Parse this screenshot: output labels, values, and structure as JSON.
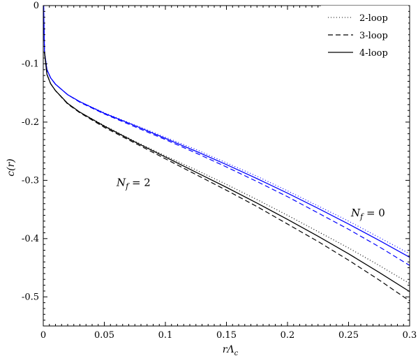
{
  "chart_data": {
    "type": "line",
    "title": "",
    "xlabel": "rΛ",
    "xlabel_sub": "c",
    "ylabel": "c(r)",
    "xlim": [
      0,
      0.3
    ],
    "ylim": [
      -0.55,
      0
    ],
    "xticks": [
      0,
      0.05,
      0.1,
      0.15,
      0.2,
      0.25,
      0.3
    ],
    "xtick_labels": [
      "0",
      "0.05",
      "0.1",
      "0.15",
      "0.2",
      "0.25",
      "0.3"
    ],
    "yticks": [
      0,
      -0.1,
      -0.2,
      -0.3,
      -0.4,
      -0.5
    ],
    "ytick_labels": [
      "0",
      "-0.1",
      "-0.2",
      "-0.3",
      "-0.4",
      "-0.5"
    ],
    "grid": false,
    "legend_position": "top-right",
    "legend": [
      {
        "label": "2-loop",
        "style": "dotted"
      },
      {
        "label": "3-loop",
        "style": "dashed"
      },
      {
        "label": "4-loop",
        "style": "solid"
      }
    ],
    "annotations": [
      {
        "text_main": "N",
        "text_sub": "f",
        "text_rest": " = 2",
        "x": 0.06,
        "y": -0.31
      },
      {
        "text_main": "N",
        "text_sub": "f",
        "text_rest": " = 0",
        "x": 0.252,
        "y": -0.362
      }
    ],
    "colors": {
      "nf0": "#0000ff",
      "nf2": "#000000"
    },
    "series": [
      {
        "group": "Nf=0",
        "loop": "2-loop",
        "style": "dotted",
        "color": "#0000ff",
        "x": [
          0.0003,
          0.001,
          0.003,
          0.006,
          0.01,
          0.02,
          0.03,
          0.05,
          0.075,
          0.1,
          0.125,
          0.15,
          0.175,
          0.2,
          0.225,
          0.25,
          0.275,
          0.3
        ],
        "y": [
          -0.0,
          -0.08,
          -0.11,
          -0.124,
          -0.135,
          -0.153,
          -0.165,
          -0.184,
          -0.205,
          -0.226,
          -0.247,
          -0.27,
          -0.293,
          -0.318,
          -0.344,
          -0.37,
          -0.398,
          -0.426
        ]
      },
      {
        "group": "Nf=0",
        "loop": "3-loop",
        "style": "dashed",
        "color": "#0000ff",
        "x": [
          0.0003,
          0.001,
          0.003,
          0.006,
          0.01,
          0.02,
          0.03,
          0.05,
          0.075,
          0.1,
          0.125,
          0.15,
          0.175,
          0.2,
          0.225,
          0.25,
          0.275,
          0.3
        ],
        "y": [
          -0.0,
          -0.08,
          -0.11,
          -0.124,
          -0.135,
          -0.153,
          -0.166,
          -0.186,
          -0.208,
          -0.23,
          -0.253,
          -0.277,
          -0.302,
          -0.328,
          -0.356,
          -0.384,
          -0.414,
          -0.446
        ]
      },
      {
        "group": "Nf=0",
        "loop": "4-loop",
        "style": "solid",
        "color": "#0000ff",
        "x": [
          0.0003,
          0.001,
          0.003,
          0.006,
          0.01,
          0.02,
          0.03,
          0.05,
          0.075,
          0.1,
          0.125,
          0.15,
          0.175,
          0.2,
          0.225,
          0.25,
          0.275,
          0.3
        ],
        "y": [
          -0.0,
          -0.08,
          -0.11,
          -0.124,
          -0.135,
          -0.153,
          -0.165,
          -0.185,
          -0.206,
          -0.228,
          -0.25,
          -0.273,
          -0.297,
          -0.322,
          -0.348,
          -0.375,
          -0.403,
          -0.432
        ]
      },
      {
        "group": "Nf=2",
        "loop": "2-loop",
        "style": "dotted",
        "color": "#000000",
        "x": [
          0.001,
          0.003,
          0.006,
          0.01,
          0.02,
          0.03,
          0.05,
          0.075,
          0.1,
          0.125,
          0.15,
          0.175,
          0.2,
          0.225,
          0.25,
          0.275,
          0.3
        ],
        "y": [
          -0.08,
          -0.118,
          -0.134,
          -0.146,
          -0.168,
          -0.183,
          -0.206,
          -0.233,
          -0.258,
          -0.282,
          -0.307,
          -0.333,
          -0.36,
          -0.388,
          -0.416,
          -0.446,
          -0.477
        ]
      },
      {
        "group": "Nf=2",
        "loop": "3-loop",
        "style": "dashed",
        "color": "#000000",
        "x": [
          0.001,
          0.003,
          0.006,
          0.01,
          0.02,
          0.03,
          0.05,
          0.075,
          0.1,
          0.125,
          0.15,
          0.175,
          0.2,
          0.225,
          0.25,
          0.275,
          0.3
        ],
        "y": [
          -0.08,
          -0.118,
          -0.134,
          -0.146,
          -0.169,
          -0.184,
          -0.209,
          -0.236,
          -0.263,
          -0.29,
          -0.317,
          -0.345,
          -0.375,
          -0.405,
          -0.437,
          -0.471,
          -0.507
        ]
      },
      {
        "group": "Nf=2",
        "loop": "4-loop",
        "style": "solid",
        "color": "#000000",
        "x": [
          0.001,
          0.003,
          0.006,
          0.01,
          0.02,
          0.03,
          0.05,
          0.075,
          0.1,
          0.125,
          0.15,
          0.175,
          0.2,
          0.225,
          0.25,
          0.275,
          0.3
        ],
        "y": [
          -0.08,
          -0.118,
          -0.134,
          -0.146,
          -0.168,
          -0.183,
          -0.207,
          -0.234,
          -0.26,
          -0.286,
          -0.312,
          -0.339,
          -0.367,
          -0.396,
          -0.426,
          -0.458,
          -0.491
        ]
      }
    ]
  }
}
